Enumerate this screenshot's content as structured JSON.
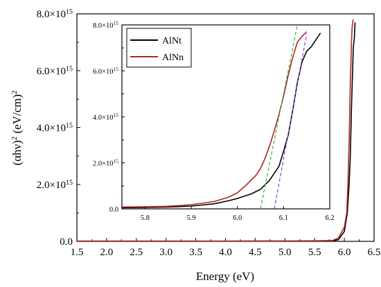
{
  "chart_data": [
    {
      "type": "line",
      "xlabel": "Energy (eV)",
      "ylabel": "(αhν)² (eV/cm)²",
      "xlim": [
        1.5,
        6.5
      ],
      "ylim": [
        0,
        8000000000000000.0
      ],
      "x_ticks": [
        "1.5",
        "2.0",
        "2.5",
        "3.0",
        "3.5",
        "4.0",
        "4.5",
        "5.0",
        "5.5",
        "6.0",
        "6.5"
      ],
      "y_ticks": [
        "0.0",
        "2.0×10",
        "4.0×10",
        "6.0×10",
        "8.0×10"
      ],
      "y_tick_exponent": "15",
      "grid": false,
      "series": [
        {
          "name": "AlNt",
          "color": "#000000",
          "x": [
            1.5,
            2.0,
            3.0,
            4.0,
            5.0,
            5.5,
            5.8,
            5.9,
            6.0,
            6.05,
            6.08,
            6.1,
            6.12,
            6.15,
            6.17,
            6.18
          ],
          "y": [
            5000000000000.0,
            5000000000000.0,
            5000000000000.0,
            6000000000000.0,
            8000000000000.0,
            10000000000000.0,
            20000000000000.0,
            60000000000000.0,
            350000000000000.0,
            1000000000000000.0,
            2000000000000000.0,
            3000000000000000.0,
            4700000000000000.0,
            6800000000000000.0,
            7200000000000000.0,
            7700000000000000.0
          ]
        },
        {
          "name": "AlNn",
          "color": "#b22222",
          "x": [
            1.5,
            2.0,
            3.0,
            4.0,
            5.0,
            5.5,
            5.8,
            5.9,
            6.0,
            6.04,
            6.06,
            6.08,
            6.1,
            6.12,
            6.13,
            6.14,
            6.15
          ],
          "y": [
            10000000000000.0,
            10000000000000.0,
            10000000000000.0,
            12000000000000.0,
            15000000000000.0,
            20000000000000.0,
            30000000000000.0,
            120000000000000.0,
            500000000000000.0,
            1000000000000000.0,
            2000000000000000.0,
            3500000000000000.0,
            5500000000000000.0,
            7000000000000000.0,
            7500000000000000.0,
            7700000000000000.0,
            7800000000000000.0
          ]
        }
      ]
    },
    {
      "type": "line",
      "role": "inset",
      "xlim": [
        5.75,
        6.2
      ],
      "ylim": [
        0,
        8000000000000000.0
      ],
      "x_ticks": [
        "5.8",
        "5.9",
        "6.0",
        "6.1",
        "6.2"
      ],
      "y_ticks": [
        "0.0",
        "2.0×10",
        "4.0×10",
        "6.0×10",
        "8.0×10"
      ],
      "y_tick_exponent": "15",
      "legend_position": "top-left",
      "series": [
        {
          "name": "AlNt",
          "color": "#000000",
          "x": [
            5.75,
            5.8,
            5.85,
            5.9,
            5.95,
            5.98,
            6.0,
            6.03,
            6.05,
            6.07,
            6.09,
            6.1,
            6.11,
            6.12,
            6.13,
            6.14,
            6.15,
            6.16,
            6.17,
            6.18
          ],
          "y": [
            50000000000000.0,
            60000000000000.0,
            80000000000000.0,
            120000000000000.0,
            220000000000000.0,
            350000000000000.0,
            450000000000000.0,
            650000000000000.0,
            850000000000000.0,
            1250000000000000.0,
            1850000000000000.0,
            2500000000000000.0,
            3200000000000000.0,
            4300000000000000.0,
            5500000000000000.0,
            6400000000000000.0,
            6850000000000000.0,
            7050000000000000.0,
            7350000000000000.0,
            7650000000000000.0
          ]
        },
        {
          "name": "AlNn",
          "color": "#b22222",
          "x": [
            5.75,
            5.8,
            5.85,
            5.9,
            5.95,
            5.98,
            6.0,
            6.02,
            6.04,
            6.05,
            6.06,
            6.07,
            6.08,
            6.09,
            6.1,
            6.11,
            6.12,
            6.13,
            6.14,
            6.15
          ],
          "y": [
            80000000000000.0,
            90000000000000.0,
            110000000000000.0,
            180000000000000.0,
            320000000000000.0,
            500000000000000.0,
            700000000000000.0,
            1050000000000000.0,
            1450000000000000.0,
            1750000000000000.0,
            2200000000000000.0,
            2750000000000000.0,
            3400000000000000.0,
            4100000000000000.0,
            4900000000000000.0,
            5800000000000000.0,
            6600000000000000.0,
            7250000000000000.0,
            7500000000000000.0,
            7700000000000000.0
          ]
        }
      ],
      "fit_lines": [
        {
          "color": "#44bb44",
          "x": [
            6.05,
            6.13
          ],
          "y": [
            0,
            8000000000000000.0
          ]
        },
        {
          "color": "#8855dd",
          "x": [
            6.08,
            6.15
          ],
          "y": [
            0,
            7600000000000000.0
          ]
        }
      ]
    }
  ]
}
